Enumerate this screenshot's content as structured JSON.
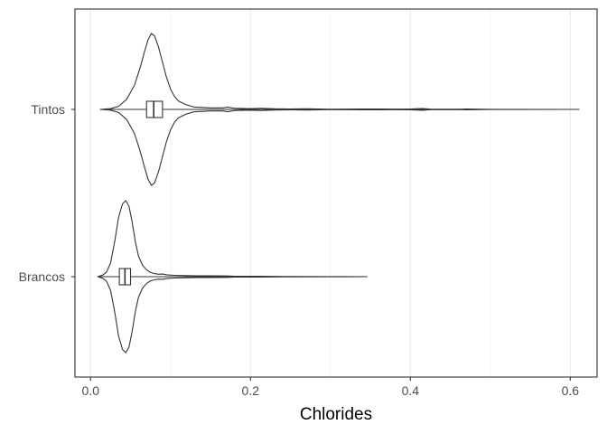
{
  "chart_data": {
    "type": "violin",
    "title": "",
    "xlabel": "Chlorides",
    "ylabel": "",
    "orientation": "horizontal",
    "xlim": [
      -0.0195,
      0.6335
    ],
    "x_ticks": [
      0.0,
      0.2,
      0.4,
      0.6
    ],
    "x_tick_labels": [
      "0.0",
      "0.2",
      "0.4",
      "0.6"
    ],
    "grid": "vertical major and minor gridlines",
    "legend": "none",
    "colors": {
      "outline": "#333333",
      "grid": "#ebebeb",
      "panel_border": "#333333",
      "fill": "#ffffff"
    },
    "categories": [
      "Tintos",
      "Brancos"
    ],
    "series": [
      {
        "name": "Tintos",
        "min": 0.012,
        "q1": 0.07,
        "median": 0.079,
        "q3": 0.09,
        "max": 0.611,
        "whisker_low": 0.042,
        "whisker_high": 0.119,
        "density": [
          [
            0.012,
            0.0
          ],
          [
            0.025,
            0.01
          ],
          [
            0.035,
            0.04
          ],
          [
            0.045,
            0.13
          ],
          [
            0.055,
            0.32
          ],
          [
            0.062,
            0.55
          ],
          [
            0.068,
            0.78
          ],
          [
            0.072,
            0.92
          ],
          [
            0.076,
            1.0
          ],
          [
            0.08,
            0.97
          ],
          [
            0.085,
            0.82
          ],
          [
            0.09,
            0.62
          ],
          [
            0.095,
            0.42
          ],
          [
            0.1,
            0.27
          ],
          [
            0.105,
            0.17
          ],
          [
            0.11,
            0.11
          ],
          [
            0.12,
            0.06
          ],
          [
            0.13,
            0.03
          ],
          [
            0.15,
            0.02
          ],
          [
            0.165,
            0.02
          ],
          [
            0.172,
            0.03
          ],
          [
            0.18,
            0.015
          ],
          [
            0.2,
            0.01
          ],
          [
            0.213,
            0.015
          ],
          [
            0.23,
            0.008
          ],
          [
            0.25,
            0.006
          ],
          [
            0.27,
            0.008
          ],
          [
            0.3,
            0.003
          ],
          [
            0.34,
            0.006
          ],
          [
            0.36,
            0.006
          ],
          [
            0.38,
            0.004
          ],
          [
            0.4,
            0.005
          ],
          [
            0.415,
            0.012
          ],
          [
            0.425,
            0.004
          ],
          [
            0.46,
            0.003
          ],
          [
            0.47,
            0.005
          ],
          [
            0.5,
            0.001
          ],
          [
            0.611,
            0.0
          ]
        ]
      },
      {
        "name": "Brancos",
        "min": 0.009,
        "q1": 0.036,
        "median": 0.043,
        "q3": 0.05,
        "max": 0.346,
        "whisker_low": 0.012,
        "whisker_high": 0.071,
        "density": [
          [
            0.009,
            0.0
          ],
          [
            0.015,
            0.02
          ],
          [
            0.02,
            0.06
          ],
          [
            0.025,
            0.18
          ],
          [
            0.03,
            0.45
          ],
          [
            0.035,
            0.78
          ],
          [
            0.04,
            0.96
          ],
          [
            0.044,
            1.0
          ],
          [
            0.048,
            0.93
          ],
          [
            0.052,
            0.72
          ],
          [
            0.056,
            0.46
          ],
          [
            0.06,
            0.27
          ],
          [
            0.065,
            0.15
          ],
          [
            0.07,
            0.09
          ],
          [
            0.075,
            0.055
          ],
          [
            0.08,
            0.04
          ],
          [
            0.085,
            0.032
          ],
          [
            0.09,
            0.035
          ],
          [
            0.095,
            0.025
          ],
          [
            0.105,
            0.018
          ],
          [
            0.12,
            0.014
          ],
          [
            0.135,
            0.012
          ],
          [
            0.15,
            0.012
          ],
          [
            0.17,
            0.01
          ],
          [
            0.18,
            0.006
          ],
          [
            0.2,
            0.006
          ],
          [
            0.21,
            0.005
          ],
          [
            0.24,
            0.002
          ],
          [
            0.3,
            0.001
          ],
          [
            0.346,
            0.0
          ]
        ]
      }
    ]
  }
}
